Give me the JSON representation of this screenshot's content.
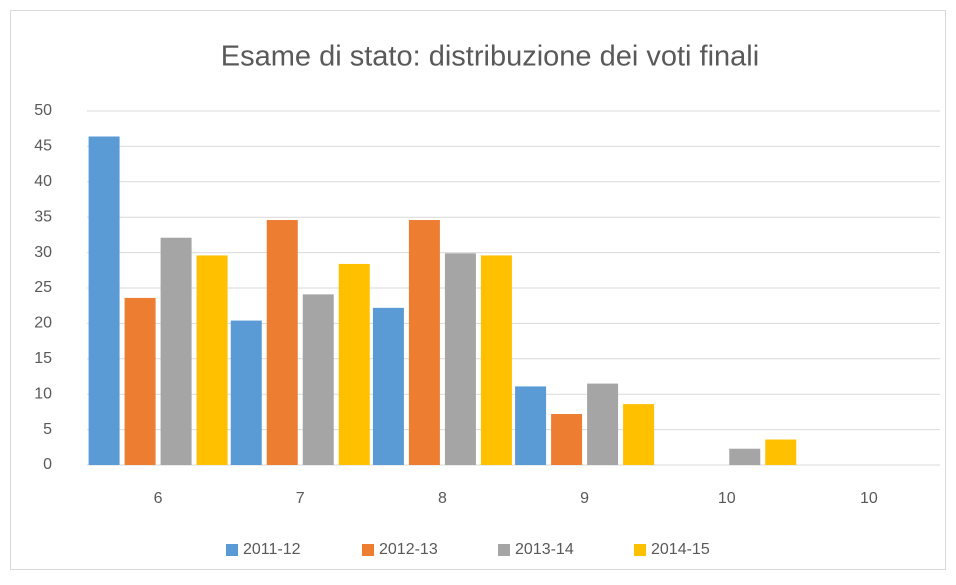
{
  "chart_data": {
    "type": "bar",
    "title": "Esame di stato: distribuzione dei voti finali",
    "categories": [
      "6",
      "7",
      "8",
      "9",
      "10",
      "10"
    ],
    "series": [
      {
        "name": "2011-12",
        "color": "#5b9bd5",
        "values": [
          46.4,
          20.4,
          22.2,
          11.1,
          0,
          0
        ]
      },
      {
        "name": "2012-13",
        "color": "#ed7d31",
        "values": [
          23.6,
          34.6,
          34.6,
          7.2,
          0,
          0
        ]
      },
      {
        "name": "2013-14",
        "color": "#a5a5a5",
        "values": [
          32.1,
          24.1,
          29.9,
          11.5,
          2.3,
          0
        ]
      },
      {
        "name": "2014-15",
        "color": "#ffc000",
        "values": [
          29.6,
          28.4,
          29.6,
          8.6,
          3.6,
          0
        ]
      }
    ],
    "ylim": [
      0,
      50
    ],
    "yticks": [
      0,
      5,
      10,
      15,
      20,
      25,
      30,
      35,
      40,
      45,
      50
    ],
    "grid": true,
    "legend": "bottom"
  }
}
